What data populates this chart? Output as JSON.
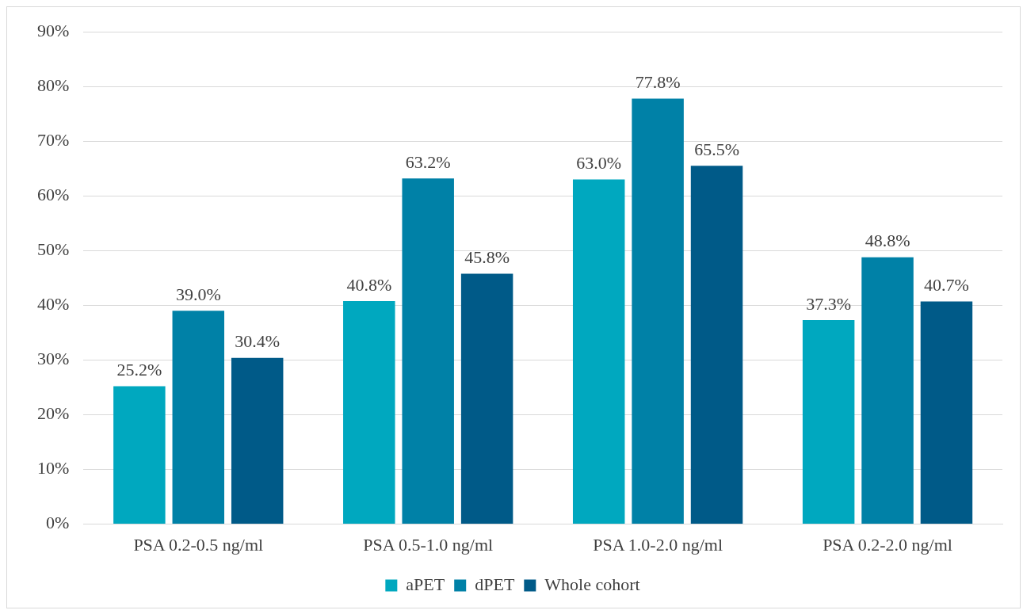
{
  "chart_data": {
    "type": "bar",
    "categories": [
      "PSA 0.2-0.5 ng/ml",
      "PSA 0.5-1.0 ng/ml",
      "PSA 1.0-2.0 ng/ml",
      "PSA 0.2-2.0 ng/ml"
    ],
    "series": [
      {
        "name": "aPET",
        "color": "#00a8bf",
        "values": [
          25.2,
          40.8,
          63.0,
          37.3
        ],
        "value_labels": [
          "25.2%",
          "40.8%",
          "63.0%",
          "37.3%"
        ]
      },
      {
        "name": "dPET",
        "color": "#0081a7",
        "values": [
          39.0,
          63.2,
          77.8,
          48.8
        ],
        "value_labels": [
          "39.0%",
          "63.2%",
          "77.8%",
          "48.8%"
        ]
      },
      {
        "name": "Whole cohort",
        "color": "#005a88",
        "values": [
          30.4,
          45.8,
          65.5,
          40.7
        ],
        "value_labels": [
          "30.4%",
          "45.8%",
          "65.5%",
          "40.7%"
        ]
      }
    ],
    "ylim": [
      0,
      90
    ],
    "yticks": [
      {
        "value": 0,
        "label": "0%"
      },
      {
        "value": 10,
        "label": "10%"
      },
      {
        "value": 20,
        "label": "20%"
      },
      {
        "value": 30,
        "label": "30%"
      },
      {
        "value": 40,
        "label": "40%"
      },
      {
        "value": 50,
        "label": "50%"
      },
      {
        "value": 60,
        "label": "60%"
      },
      {
        "value": 70,
        "label": "70%"
      },
      {
        "value": 80,
        "label": "80%"
      },
      {
        "value": 90,
        "label": "90%"
      }
    ],
    "grid": "y",
    "legend": "bottom"
  }
}
